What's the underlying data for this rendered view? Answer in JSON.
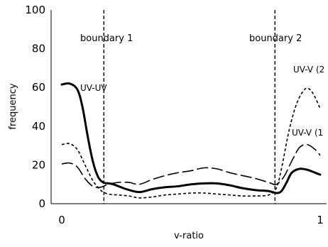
{
  "chart_data": {
    "type": "line",
    "xlabel": "v-ratio",
    "ylabel": "frequency",
    "xlim": [
      0,
      1
    ],
    "ylim": [
      0,
      100
    ],
    "x_ticks": [
      "0",
      "1"
    ],
    "y_ticks": [
      "0",
      "20",
      "40",
      "60",
      "80",
      "100"
    ],
    "x_tick_values": [
      0,
      1
    ],
    "y_tick_values": [
      0,
      20,
      40,
      60,
      80,
      100
    ],
    "grid": false,
    "annotations": [
      {
        "id": "boundary-1",
        "label": "boundary 1",
        "x": 0.163,
        "style": "dashed"
      },
      {
        "id": "boundary-2",
        "label": "boundary 2",
        "x": 0.825,
        "style": "dashed"
      }
    ],
    "series": [
      {
        "name": "UV-UV",
        "label_text": "UV-UV",
        "style": "solid",
        "color": "#000000",
        "x": [
          0,
          0.03,
          0.06,
          0.08,
          0.1,
          0.12,
          0.14,
          0.16,
          0.18,
          0.2,
          0.25,
          0.3,
          0.35,
          0.4,
          0.45,
          0.5,
          0.55,
          0.6,
          0.65,
          0.7,
          0.75,
          0.8,
          0.83,
          0.85,
          0.87,
          0.89,
          0.92,
          0.95,
          0.98,
          1.0
        ],
        "y": [
          61.5,
          62,
          59,
          50,
          35,
          22,
          14,
          11,
          10.5,
          10,
          7.5,
          6,
          7.5,
          8.5,
          9,
          10,
          10.5,
          10.5,
          9.5,
          8,
          7,
          6.5,
          5.5,
          6.5,
          11,
          16,
          18,
          17.5,
          16,
          15
        ]
      },
      {
        "name": "UV-V (1",
        "label_text": "UV-V (1",
        "style": "long-dash",
        "color": "#000000",
        "x": [
          0,
          0.03,
          0.06,
          0.09,
          0.12,
          0.15,
          0.18,
          0.22,
          0.26,
          0.3,
          0.35,
          0.4,
          0.45,
          0.5,
          0.55,
          0.6,
          0.65,
          0.7,
          0.75,
          0.8,
          0.83,
          0.86,
          0.89,
          0.92,
          0.95,
          0.98,
          1.0
        ],
        "y": [
          20.5,
          21,
          19,
          13,
          9,
          8.5,
          10,
          11,
          11,
          10,
          12.5,
          14.5,
          16,
          17,
          18.5,
          18,
          16,
          14.5,
          13,
          11,
          10,
          14,
          22,
          29,
          30.5,
          28,
          25
        ]
      },
      {
        "name": "UV-V (2",
        "label_text": "UV-V (2",
        "style": "short-dash",
        "color": "#000000",
        "x": [
          0,
          0.03,
          0.06,
          0.09,
          0.12,
          0.15,
          0.18,
          0.22,
          0.26,
          0.3,
          0.35,
          0.4,
          0.45,
          0.5,
          0.55,
          0.6,
          0.65,
          0.7,
          0.75,
          0.8,
          0.83,
          0.85,
          0.88,
          0.91,
          0.94,
          0.96,
          0.98,
          1.0
        ],
        "y": [
          30.5,
          31,
          28,
          20,
          12,
          7,
          5,
          4.5,
          4,
          3,
          3.5,
          4.5,
          5,
          5.5,
          5.5,
          5,
          4.5,
          4,
          4,
          4.5,
          8,
          18,
          38,
          52,
          59,
          59,
          55,
          49
        ]
      }
    ]
  }
}
